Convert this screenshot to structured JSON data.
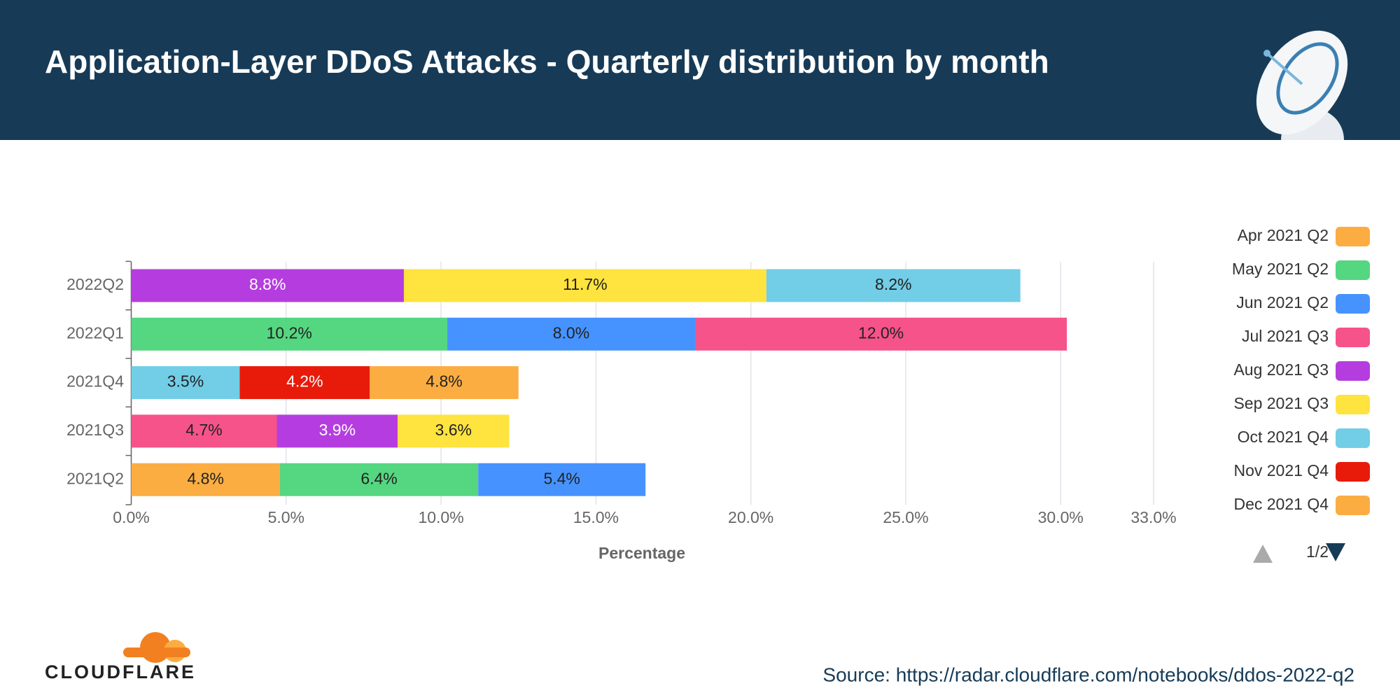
{
  "chart_data": {
    "type": "stacked_barh",
    "title": "Application-Layer DDoS Attacks - Quarterly distribution by month",
    "xlabel": "Percentage",
    "categories": [
      "2022Q2",
      "2022Q1",
      "2021Q4",
      "2021Q3",
      "2021Q2"
    ],
    "series": [
      {
        "name": "Apr 2021 Q2",
        "color": "#fbad41",
        "label_color": "#222",
        "values": [
          null,
          null,
          null,
          null,
          4.8
        ],
        "value_labels": [
          null,
          null,
          null,
          null,
          "4.8%"
        ]
      },
      {
        "name": "May 2021 Q2",
        "color": "#55d680",
        "label_color": "#222",
        "values": [
          null,
          null,
          null,
          null,
          6.4
        ],
        "value_labels": [
          null,
          null,
          null,
          null,
          "6.4%"
        ]
      },
      {
        "name": "Jun 2021 Q2",
        "color": "#4693ff",
        "label_color": "#222",
        "values": [
          null,
          null,
          null,
          null,
          5.4
        ],
        "value_labels": [
          null,
          null,
          null,
          null,
          "5.4%"
        ]
      },
      {
        "name": "Jul 2021 Q3",
        "color": "#f6538a",
        "label_color": "#222",
        "values": [
          null,
          null,
          null,
          4.7,
          null
        ],
        "value_labels": [
          null,
          null,
          null,
          "4.7%",
          null
        ]
      },
      {
        "name": "Aug 2021 Q3",
        "color": "#b53de0",
        "label_color": "#fff",
        "values": [
          null,
          null,
          null,
          3.9,
          null
        ],
        "value_labels": [
          null,
          null,
          null,
          "3.9%",
          null
        ]
      },
      {
        "name": "Sep 2021 Q3",
        "color": "#ffe33e",
        "label_color": "#222",
        "values": [
          null,
          null,
          null,
          3.6,
          null
        ],
        "value_labels": [
          null,
          null,
          null,
          "3.6%",
          null
        ]
      },
      {
        "name": "Oct 2021 Q4",
        "color": "#72cde6",
        "label_color": "#222",
        "values": [
          null,
          null,
          3.5,
          null,
          null
        ],
        "value_labels": [
          null,
          null,
          "3.5%",
          null,
          null
        ]
      },
      {
        "name": "Nov 2021 Q4",
        "color": "#e81b0b",
        "label_color": "#fff",
        "values": [
          null,
          null,
          4.2,
          null,
          null
        ],
        "value_labels": [
          null,
          null,
          "4.2%",
          null,
          null
        ]
      },
      {
        "name": "Dec 2021 Q4",
        "color": "#fbad41",
        "label_color": "#222",
        "values": [
          null,
          null,
          4.8,
          null,
          null
        ],
        "value_labels": [
          null,
          null,
          "4.8%",
          null,
          null
        ]
      },
      {
        "color": "#55d680",
        "label_color": "#222",
        "values": [
          null,
          10.2,
          null,
          null,
          null
        ],
        "value_labels": [
          null,
          "10.2%",
          null,
          null,
          null
        ]
      },
      {
        "color": "#4693ff",
        "label_color": "#222",
        "values": [
          null,
          8.0,
          null,
          null,
          null
        ],
        "value_labels": [
          null,
          "8.0%",
          null,
          null,
          null
        ]
      },
      {
        "color": "#f6538a",
        "label_color": "#222",
        "values": [
          null,
          12.0,
          null,
          null,
          null
        ],
        "value_labels": [
          null,
          "12.0%",
          null,
          null,
          null
        ]
      },
      {
        "color": "#b53de0",
        "label_color": "#fff",
        "values": [
          8.8,
          null,
          null,
          null,
          null
        ],
        "value_labels": [
          "8.8%",
          null,
          null,
          null,
          null
        ]
      },
      {
        "color": "#ffe33e",
        "label_color": "#222",
        "values": [
          11.7,
          null,
          null,
          null,
          null
        ],
        "value_labels": [
          "11.7%",
          null,
          null,
          null,
          null
        ]
      },
      {
        "color": "#72cde6",
        "label_color": "#222",
        "values": [
          8.2,
          null,
          null,
          null,
          null
        ],
        "value_labels": [
          "8.2%",
          null,
          null,
          null,
          null
        ]
      }
    ],
    "xlim": [
      0,
      33
    ],
    "xticks": [
      {
        "value": 0,
        "label": "0.0%"
      },
      {
        "value": 5,
        "label": "5.0%"
      },
      {
        "value": 10,
        "label": "10.0%"
      },
      {
        "value": 15,
        "label": "15.0%"
      },
      {
        "value": 20,
        "label": "20.0%"
      },
      {
        "value": 25,
        "label": "25.0%"
      },
      {
        "value": 30,
        "label": "30.0%"
      },
      {
        "value": 33,
        "label": "33.0%"
      }
    ],
    "grid": true,
    "legend": "right",
    "legend_page": "1/2"
  },
  "footer": {
    "logo": "CLOUDFLARE",
    "source": "Source: https://radar.cloudflare.com/notebooks/ddos-2022-q2"
  }
}
